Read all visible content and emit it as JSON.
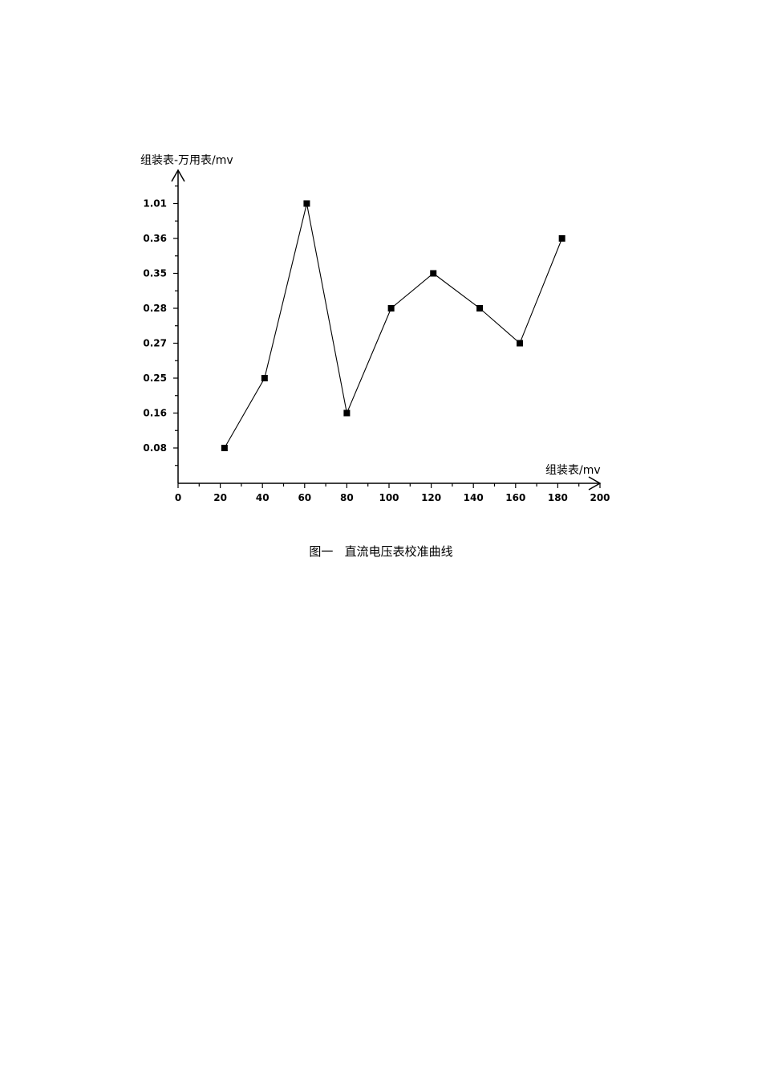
{
  "chart_data": {
    "type": "line",
    "ylabel": "组装表-万用表/mv",
    "xlabel": "组装表/mv",
    "xlim": [
      0,
      200
    ],
    "x_ticks": [
      "0",
      "20",
      "40",
      "60",
      "80",
      "100",
      "120",
      "140",
      "160",
      "180",
      "200"
    ],
    "y_categories": [
      "0.08",
      "0.16",
      "0.25",
      "0.27",
      "0.28",
      "0.35",
      "0.36",
      "1.01"
    ],
    "grid": false,
    "marker": "square",
    "line_color": "#000000",
    "series": [
      {
        "x": [
          22,
          41,
          61,
          80,
          101,
          121,
          143,
          162,
          182
        ],
        "y": [
          "0.08",
          "0.25",
          "1.01",
          "0.16",
          "0.28",
          "0.35",
          "0.28",
          "0.27",
          "0.36"
        ]
      }
    ]
  },
  "caption": "图一   直流电压表校准曲线"
}
